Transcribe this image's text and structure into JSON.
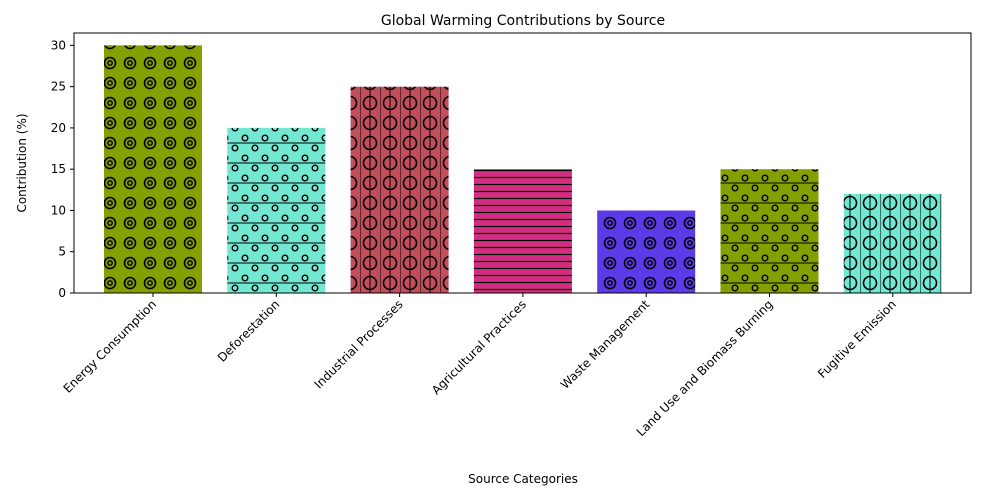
{
  "chart_data": {
    "type": "bar",
    "title": "Global Warming Contributions by Source",
    "xlabel": "Source Categories",
    "ylabel": "Contribution (%)",
    "ylim": [
      0,
      31.5
    ],
    "yticks": [
      "0",
      "5",
      "10",
      "15",
      "20",
      "25",
      "30"
    ],
    "grid": false,
    "legend": "none",
    "categories": [
      "Energy Consumption",
      "Deforestation",
      "Industrial Processes",
      "Agricultural Practices",
      "Waste Management",
      "Land Use and Biomass Burning",
      "Fugitive Emission"
    ],
    "values": [
      30,
      20,
      25,
      15,
      10,
      15,
      12
    ],
    "colors": [
      "#849f00",
      "#72e8d2",
      "#c24e5b",
      "#d22d80",
      "#5d3ae8",
      "#849f00",
      "#72e8d2"
    ],
    "hatches": [
      "rings",
      "dots-lines",
      "circles-vlines",
      "hlines",
      "rings",
      "dots-lines",
      "circles-vlines"
    ]
  }
}
